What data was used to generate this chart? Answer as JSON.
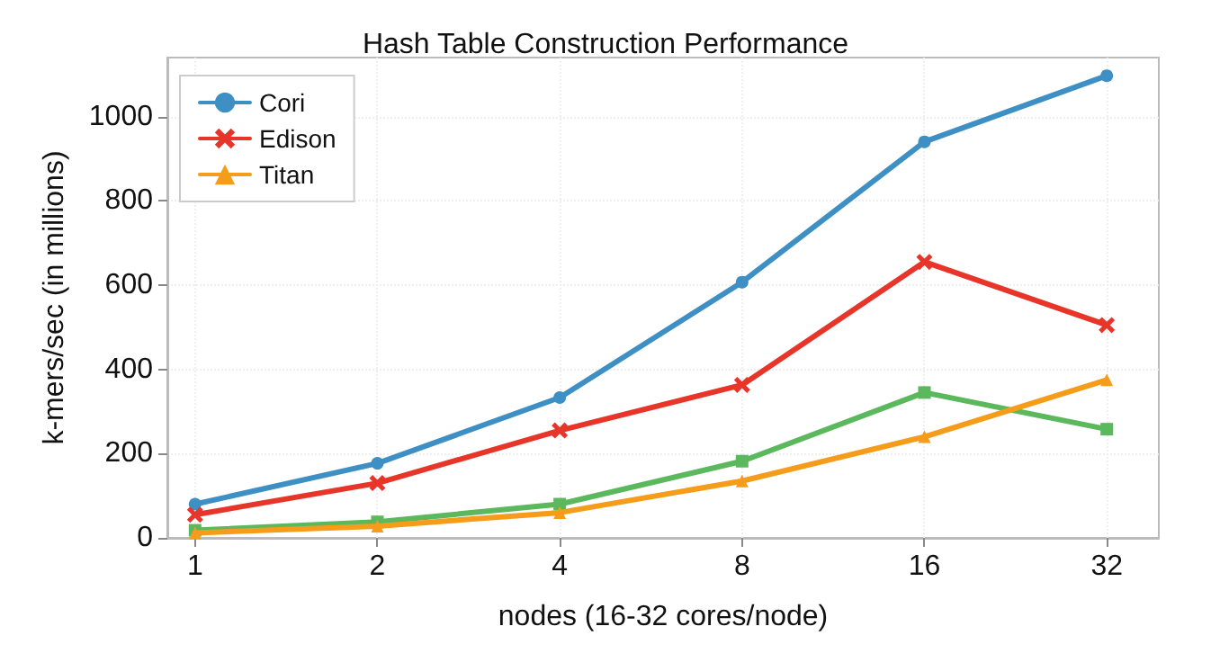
{
  "chart_data": {
    "type": "line",
    "title": "Hash Table Construction Performance",
    "xlabel": "nodes (16-32 cores/node)",
    "ylabel": "k-mers/sec (in millions)",
    "x": [
      1,
      2,
      4,
      8,
      16,
      32
    ],
    "log": "x",
    "xlim": [
      0.9,
      39
    ],
    "xticks": [
      1,
      2,
      4,
      8,
      16,
      32
    ],
    "ylim": [
      0,
      1140
    ],
    "yticks": [
      0,
      200,
      400,
      600,
      800,
      1000
    ],
    "grid": true,
    "legend": "top left",
    "line_style": "solid",
    "series": [
      {
        "name": "Cori",
        "color": "#3d8fc4",
        "marker": "circle",
        "values": [
          80,
          177,
          333,
          607,
          940,
          1097
        ]
      },
      {
        "name": "Edison",
        "color": "#e8352a",
        "marker": "cross",
        "values": [
          55,
          130,
          255,
          363,
          655,
          505
        ]
      },
      {
        "name": "Titan",
        "color": "#f59c1a",
        "marker": "triangle",
        "values": [
          12,
          28,
          60,
          135,
          240,
          375
        ]
      },
      {
        "color": "#5cb85c",
        "marker": "square",
        "values": [
          18,
          38,
          80,
          182,
          345,
          258
        ]
      }
    ]
  }
}
